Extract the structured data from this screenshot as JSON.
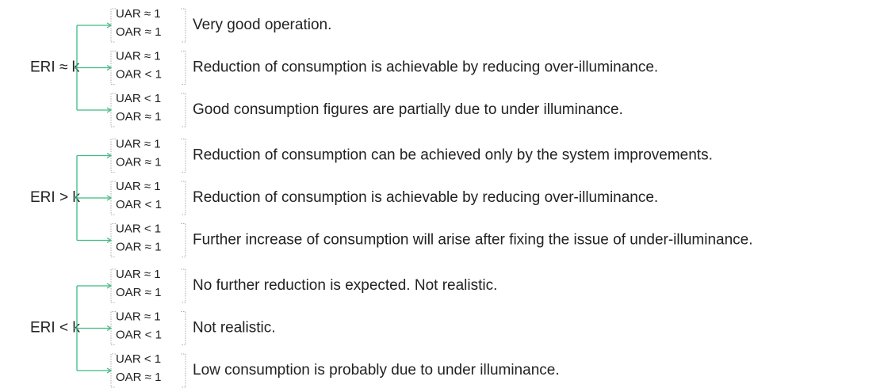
{
  "groups": [
    {
      "label": "ERI ≈ k",
      "branches": [
        {
          "uar": "UAR ≈ 1",
          "oar": "OAR ≈ 1",
          "text": "Very good operation."
        },
        {
          "uar": "UAR ≈ 1",
          "oar": "OAR < 1",
          "text": "Reduction of consumption is achievable by reducing over-illuminance."
        },
        {
          "uar": "UAR < 1",
          "oar": "OAR ≈ 1",
          "text": "Good consumption figures are partially due to under illuminance."
        }
      ]
    },
    {
      "label": "ERI > k",
      "branches": [
        {
          "uar": "UAR ≈ 1",
          "oar": "OAR ≈ 1",
          "text": "Reduction of consumption can be achieved only by the system improvements."
        },
        {
          "uar": "UAR ≈ 1",
          "oar": "OAR < 1",
          "text": "Reduction of consumption is achievable by reducing over-illuminance."
        },
        {
          "uar": "UAR < 1",
          "oar": "OAR ≈ 1",
          "text": "Further increase of consumption will arise after fixing the issue of under-illuminance."
        }
      ]
    },
    {
      "label": "ERI < k",
      "branches": [
        {
          "uar": "UAR ≈ 1",
          "oar": "OAR ≈ 1",
          "text": "No further reduction is expected. Not realistic."
        },
        {
          "uar": "UAR ≈ 1",
          "oar": "OAR < 1",
          "text": "Not realistic."
        },
        {
          "uar": "UAR < 1",
          "oar": "OAR ≈ 1",
          "text": "Low consumption is probably due to under illuminance."
        }
      ]
    }
  ]
}
